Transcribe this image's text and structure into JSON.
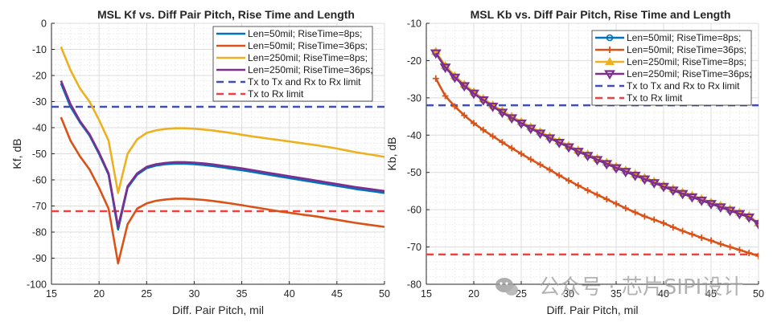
{
  "chart_data": [
    {
      "type": "line",
      "title": "MSL Kf vs. Diff Pair Pitch, Rise Time and Length",
      "xlabel": "Diff. Pair Pitch, mil",
      "ylabel": "Kf, dB",
      "xlim": [
        15,
        50
      ],
      "ylim": [
        -100,
        0
      ],
      "xticks": [
        15,
        20,
        25,
        30,
        35,
        40,
        45,
        50
      ],
      "yticks": [
        0,
        -10,
        -20,
        -30,
        -40,
        -50,
        -60,
        -70,
        -80,
        -90,
        -100
      ],
      "grid": true,
      "minor_grid": true,
      "legend_position": "top-right",
      "x": [
        16,
        17,
        18,
        19,
        20,
        21,
        22,
        23,
        24,
        25,
        26,
        27,
        28,
        29,
        30,
        31,
        32,
        33,
        34,
        35,
        36,
        37,
        38,
        39,
        40,
        41,
        42,
        43,
        44,
        45,
        46,
        47,
        48,
        49,
        50
      ],
      "series": [
        {
          "name": "Len=50mil; RiseTime=8ps;",
          "color": "#0072BD",
          "marker": "none",
          "values": [
            -23,
            -32,
            -38,
            -43,
            -50,
            -58,
            -79,
            -63,
            -58,
            -55.5,
            -54.5,
            -54,
            -53.8,
            -53.8,
            -54,
            -54.3,
            -54.7,
            -55.2,
            -55.8,
            -56.3,
            -56.9,
            -57.5,
            -58.1,
            -58.7,
            -59.3,
            -59.9,
            -60.5,
            -61.1,
            -61.7,
            -62.3,
            -62.9,
            -63.5,
            -64.0,
            -64.5,
            -65.0
          ]
        },
        {
          "name": "Len=50mil; RiseTime=36ps;",
          "color": "#D95319",
          "marker": "none",
          "values": [
            -36,
            -45,
            -51,
            -56,
            -63,
            -71,
            -92,
            -77,
            -71,
            -69,
            -68,
            -67.5,
            -67.2,
            -67.2,
            -67.4,
            -67.7,
            -68.1,
            -68.6,
            -69.1,
            -69.7,
            -70.3,
            -70.9,
            -71.5,
            -72.1,
            -72.6,
            -73.1,
            -73.6,
            -74.1,
            -74.7,
            -75.3,
            -75.9,
            -76.5,
            -77.0,
            -77.5,
            -78.0
          ]
        },
        {
          "name": "Len=250mil; RiseTime=8ps;",
          "color": "#EDB120",
          "marker": "none",
          "values": [
            -9,
            -18,
            -25,
            -30,
            -37,
            -45,
            -65,
            -50,
            -44.5,
            -42,
            -41,
            -40.5,
            -40.2,
            -40.2,
            -40.4,
            -40.7,
            -41.1,
            -41.6,
            -42.1,
            -42.7,
            -43.3,
            -43.8,
            -44.3,
            -44.8,
            -45.3,
            -45.8,
            -46.3,
            -46.8,
            -47.4,
            -48.0,
            -48.7,
            -49.4,
            -50.0,
            -50.6,
            -51.2
          ]
        },
        {
          "name": "Len=250mil; RiseTime=36ps;",
          "color": "#7E2F8E",
          "marker": "none",
          "values": [
            -22,
            -31,
            -37.5,
            -42.5,
            -49.5,
            -57.5,
            -78,
            -62.5,
            -57.5,
            -55,
            -54,
            -53.5,
            -53.2,
            -53.2,
            -53.4,
            -53.7,
            -54.1,
            -54.6,
            -55.1,
            -55.6,
            -56.2,
            -56.8,
            -57.4,
            -58.0,
            -58.6,
            -59.2,
            -59.8,
            -60.4,
            -61.0,
            -61.6,
            -62.2,
            -62.8,
            -63.3,
            -63.8,
            -64.3
          ]
        },
        {
          "name": "Tx to Tx and Rx to Rx limit",
          "color": "#4050B0",
          "style": "dashed",
          "constant": -32
        },
        {
          "name": "Tx to Rx limit",
          "color": "#F04040",
          "style": "dashed",
          "constant": -72
        }
      ]
    },
    {
      "type": "line",
      "title": "MSL Kb vs. Diff Pair Pitch, Rise Time and Length",
      "xlabel": "Diff. Pair Pitch, mil",
      "ylabel": "Kb, dB",
      "xlim": [
        15,
        50
      ],
      "ylim": [
        -80,
        -10
      ],
      "xticks": [
        15,
        20,
        25,
        30,
        35,
        40,
        45,
        50
      ],
      "yticks": [
        -10,
        -20,
        -30,
        -40,
        -50,
        -60,
        -70,
        -80
      ],
      "grid": true,
      "minor_grid": true,
      "legend_position": "top-right",
      "x": [
        16,
        17,
        18,
        19,
        20,
        21,
        22,
        23,
        24,
        25,
        26,
        27,
        28,
        29,
        30,
        31,
        32,
        33,
        34,
        35,
        36,
        37,
        38,
        39,
        40,
        41,
        42,
        43,
        44,
        45,
        46,
        47,
        48,
        49,
        50
      ],
      "series": [
        {
          "name": "Len=50mil; RiseTime=8ps;",
          "color": "#0072BD",
          "marker": "circle",
          "values": [
            -18,
            -21.8,
            -24.5,
            -26.8,
            -28.8,
            -30.6,
            -32.3,
            -33.9,
            -35.4,
            -36.8,
            -38.2,
            -39.5,
            -40.8,
            -42.0,
            -43.2,
            -44.4,
            -45.5,
            -46.6,
            -47.7,
            -48.8,
            -49.8,
            -50.8,
            -51.8,
            -52.8,
            -53.8,
            -54.8,
            -55.7,
            -56.6,
            -57.5,
            -58.4,
            -59.3,
            -60.2,
            -61.1,
            -62.0,
            -63.8
          ]
        },
        {
          "name": "Len=50mil; RiseTime=36ps;",
          "color": "#D95319",
          "marker": "plus",
          "values": [
            -24.8,
            -29.5,
            -32.3,
            -34.7,
            -36.8,
            -38.6,
            -40.3,
            -41.9,
            -43.5,
            -45.0,
            -46.5,
            -47.9,
            -49.3,
            -50.8,
            -52.2,
            -53.5,
            -54.8,
            -56.0,
            -57.2,
            -58.4,
            -59.6,
            -60.7,
            -61.8,
            -62.7,
            -63.6,
            -64.7,
            -65.7,
            -66.6,
            -67.5,
            -68.3,
            -69.2,
            -70.0,
            -70.8,
            -71.6,
            -72.4
          ]
        },
        {
          "name": "Len=250mil; RiseTime=8ps;",
          "color": "#EDB120",
          "marker": "triangle-up",
          "values": [
            -17.6,
            -21.4,
            -24.1,
            -26.4,
            -28.4,
            -30.2,
            -31.9,
            -33.5,
            -35.0,
            -36.4,
            -37.8,
            -39.1,
            -40.4,
            -41.6,
            -42.8,
            -44.0,
            -45.1,
            -46.2,
            -47.3,
            -48.4,
            -49.4,
            -50.4,
            -51.4,
            -52.4,
            -53.4,
            -54.4,
            -55.3,
            -56.2,
            -57.1,
            -58.0,
            -58.9,
            -59.8,
            -60.7,
            -61.6,
            -63.6
          ]
        },
        {
          "name": "Len=250mil; RiseTime=36ps;",
          "color": "#7E2F8E",
          "marker": "triangle-down",
          "values": [
            -18,
            -21.8,
            -24.5,
            -26.8,
            -28.8,
            -30.6,
            -32.3,
            -33.9,
            -35.4,
            -36.8,
            -38.2,
            -39.5,
            -40.8,
            -42.0,
            -43.2,
            -44.4,
            -45.5,
            -46.6,
            -47.7,
            -48.8,
            -49.8,
            -50.8,
            -51.8,
            -52.8,
            -53.8,
            -54.8,
            -55.7,
            -56.6,
            -57.5,
            -58.4,
            -59.3,
            -60.2,
            -61.1,
            -62.0,
            -63.8
          ]
        },
        {
          "name": "Tx to Tx and Rx to Rx limit",
          "color": "#4050B0",
          "style": "dashed",
          "constant": -32
        },
        {
          "name": "Tx to Rx limit",
          "color": "#F04040",
          "style": "dashed",
          "constant": -72
        }
      ]
    }
  ],
  "watermark": {
    "text": "公众号 · 芯片SIPI设计",
    "icon": "wechat-icon"
  }
}
